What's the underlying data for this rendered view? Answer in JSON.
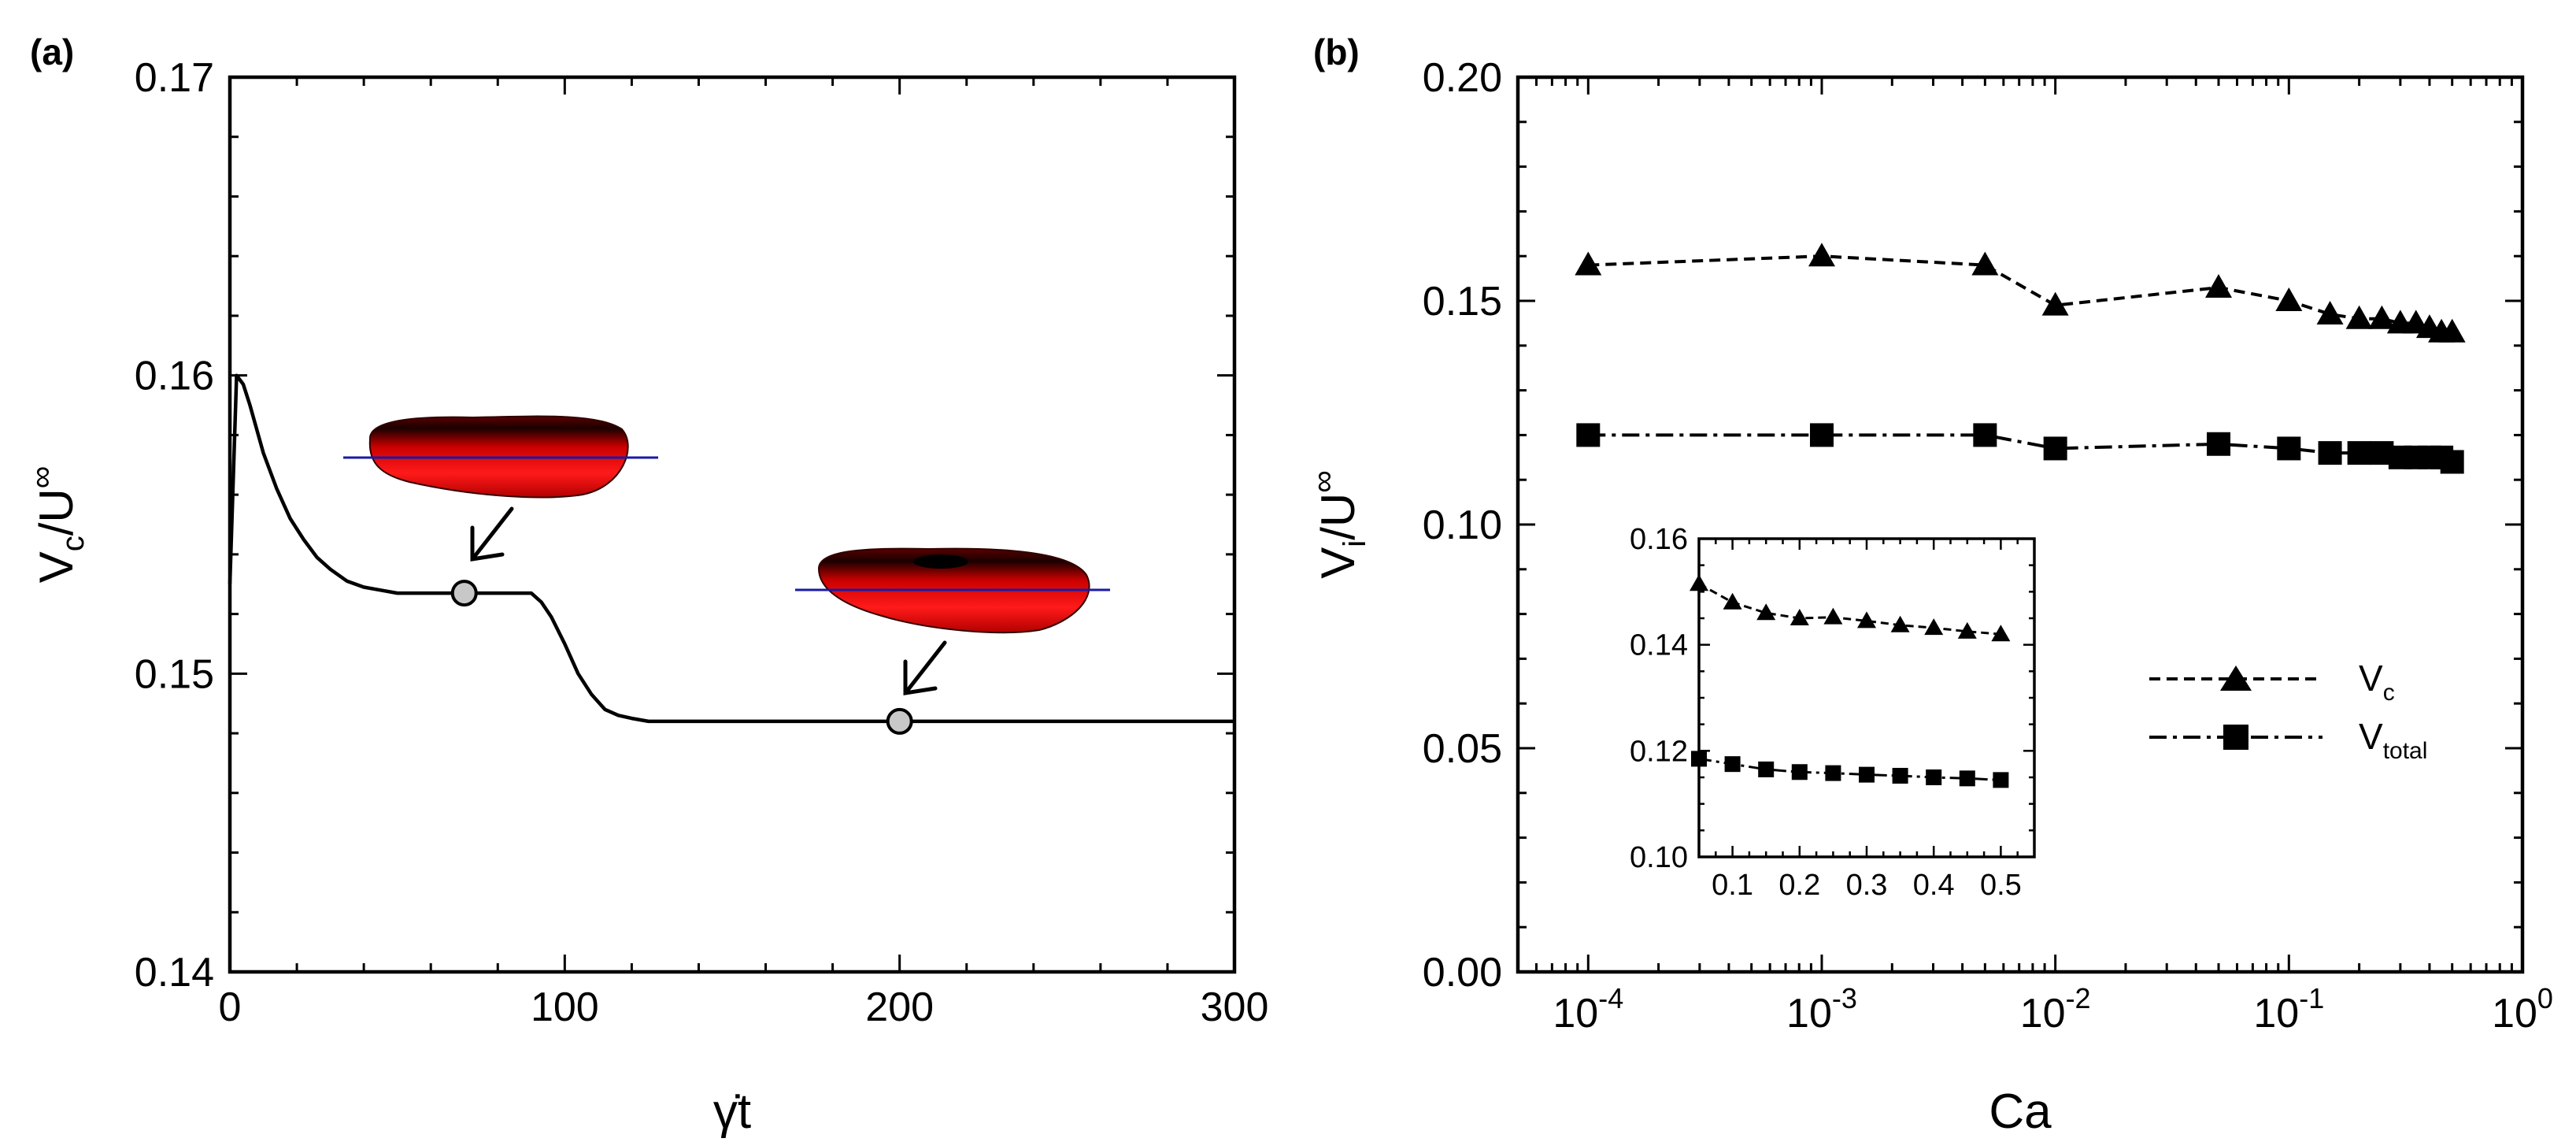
{
  "chart_data": [
    {
      "panel": "(a)",
      "type": "line",
      "xlabel": "γ̇t",
      "ylabel": {
        "base": "V",
        "sub": "c",
        "sep": "/",
        "base2": "U",
        "sup": "∞"
      },
      "xlim": [
        0,
        300
      ],
      "ylim": [
        0.14,
        0.17
      ],
      "xticks": [
        "0",
        "100",
        "200",
        "300"
      ],
      "yticks": [
        "0.14",
        "0.15",
        "0.16",
        "0.17"
      ],
      "series": [
        {
          "name": "Vc/U∞",
          "x": [
            0,
            2,
            4,
            6,
            8,
            10,
            14,
            18,
            22,
            26,
            30,
            35,
            40,
            45,
            50,
            60,
            70,
            80,
            90,
            93,
            96,
            100,
            104,
            108,
            112,
            116,
            120,
            125,
            130,
            150,
            200,
            250,
            300
          ],
          "y": [
            0.153,
            0.16,
            0.1597,
            0.159,
            0.1582,
            0.1574,
            0.1562,
            0.1552,
            0.1545,
            0.1539,
            0.1535,
            0.1531,
            0.1529,
            0.1528,
            0.1527,
            0.1527,
            0.1527,
            0.1527,
            0.1527,
            0.1524,
            0.1519,
            0.151,
            0.15,
            0.1493,
            0.1488,
            0.1486,
            0.1485,
            0.1484,
            0.1484,
            0.1484,
            0.1484,
            0.1484,
            0.1484
          ]
        }
      ],
      "markers": [
        {
          "x": 70,
          "y": 0.1527
        },
        {
          "x": 200,
          "y": 0.1484
        }
      ]
    },
    {
      "panel": "(b)",
      "type": "line",
      "xscale": "log",
      "xlabel": "Ca",
      "ylabel": {
        "base": "V",
        "sub": "i",
        "sep": "/",
        "base2": "U",
        "sup": "∞"
      },
      "xlim": [
        5e-05,
        1
      ],
      "ylim": [
        0,
        0.2
      ],
      "xticks": [
        {
          "base": "10",
          "exp": "-4"
        },
        {
          "base": "10",
          "exp": "-3"
        },
        {
          "base": "10",
          "exp": "-2"
        },
        {
          "base": "10",
          "exp": "-1"
        },
        {
          "base": "10",
          "exp": "0"
        }
      ],
      "yticks": [
        "0.00",
        "0.05",
        "0.10",
        "0.15",
        "0.20"
      ],
      "series": [
        {
          "name": "Vc",
          "legend": {
            "base": "V",
            "sub": "c"
          },
          "marker": "triangle",
          "dash": "dashed",
          "x": [
            0.0001,
            0.001,
            0.005,
            0.01,
            0.05,
            0.1,
            0.15,
            0.2,
            0.25,
            0.3,
            0.35,
            0.4,
            0.45,
            0.5
          ],
          "y": [
            0.158,
            0.16,
            0.158,
            0.149,
            0.153,
            0.15,
            0.147,
            0.146,
            0.146,
            0.145,
            0.145,
            0.144,
            0.143,
            0.143
          ]
        },
        {
          "name": "Vtotal",
          "legend": {
            "base": "V",
            "sub": "total"
          },
          "marker": "square",
          "dash": "dashdot",
          "x": [
            0.0001,
            0.001,
            0.005,
            0.01,
            0.05,
            0.1,
            0.15,
            0.2,
            0.25,
            0.3,
            0.35,
            0.4,
            0.45,
            0.5
          ],
          "y": [
            0.12,
            0.12,
            0.12,
            0.117,
            0.118,
            0.117,
            0.116,
            0.116,
            0.116,
            0.115,
            0.115,
            0.115,
            0.115,
            0.114
          ]
        }
      ],
      "inset": {
        "type": "line",
        "xlim": [
          0.05,
          0.55
        ],
        "ylim": [
          0.1,
          0.16
        ],
        "xticks": [
          "0.1",
          "0.2",
          "0.3",
          "0.4",
          "0.5"
        ],
        "yticks": [
          "0.10",
          "0.12",
          "0.14",
          "0.16"
        ],
        "series": [
          {
            "name": "Vc",
            "x": [
              0.05,
              0.1,
              0.15,
              0.2,
              0.25,
              0.3,
              0.35,
              0.4,
              0.45,
              0.5
            ],
            "y": [
              0.1515,
              0.148,
              0.146,
              0.145,
              0.1452,
              0.1445,
              0.1437,
              0.1432,
              0.1425,
              0.142
            ]
          },
          {
            "name": "Vtotal",
            "x": [
              0.05,
              0.1,
              0.15,
              0.2,
              0.25,
              0.3,
              0.35,
              0.4,
              0.45,
              0.5
            ],
            "y": [
              0.1185,
              0.1175,
              0.1165,
              0.116,
              0.1158,
              0.1155,
              0.1153,
              0.115,
              0.1148,
              0.1145
            ]
          }
        ]
      }
    }
  ]
}
